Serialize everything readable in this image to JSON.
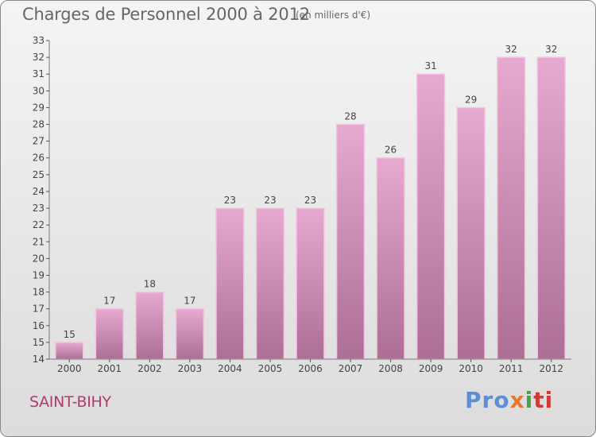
{
  "header": {
    "title": "Charges de Personnel 2000 à 2012",
    "unit": "(en milliers d'€)"
  },
  "footer": {
    "commune": "SAINT-BIHY",
    "brand": [
      "Pro",
      "x",
      "i",
      "ti"
    ]
  },
  "colors": {
    "bar_top": "#e7a9cf",
    "bar_bottom": "#ad6e95",
    "bar_border": "#f1c7df",
    "axis": "#7a7a7a",
    "grid_tick": "#555555",
    "commune": "#b03a6e"
  },
  "chart_data": {
    "type": "bar",
    "categories": [
      "2000",
      "2001",
      "2002",
      "2003",
      "2004",
      "2005",
      "2006",
      "2007",
      "2008",
      "2009",
      "2010",
      "2011",
      "2012"
    ],
    "values": [
      15,
      17,
      18,
      17,
      23,
      23,
      23,
      28,
      26,
      31,
      29,
      32,
      32
    ],
    "ylim": [
      14,
      33
    ],
    "yticks": [
      14,
      15,
      16,
      17,
      18,
      19,
      20,
      21,
      22,
      23,
      24,
      25,
      26,
      27,
      28,
      29,
      30,
      31,
      32,
      33
    ],
    "title": "Charges de Personnel 2000 à 2012",
    "xlabel": "",
    "ylabel": "",
    "legend": "none",
    "data_labels": true
  }
}
